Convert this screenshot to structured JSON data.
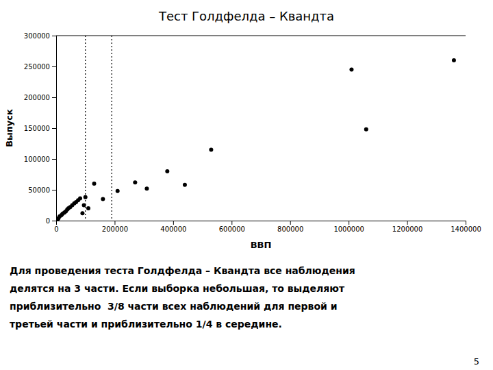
{
  "chart_data": {
    "type": "scatter",
    "title": "Тест Голдфелда – Квандта",
    "x_label": "ВВП",
    "y_label": "Выпуск",
    "x": [
      5000,
      8000,
      12000,
      18000,
      22000,
      28000,
      33000,
      38000,
      42000,
      48000,
      55000,
      62000,
      68000,
      75000,
      82000,
      90000,
      95000,
      100000,
      110000,
      130000,
      160000,
      210000,
      270000,
      310000,
      380000,
      440000,
      530000,
      1010000,
      1060000,
      1360000
    ],
    "values": [
      2000,
      4000,
      7000,
      9000,
      11000,
      13000,
      15000,
      18000,
      20000,
      22000,
      25000,
      28000,
      30000,
      33000,
      36000,
      12000,
      25000,
      38000,
      20000,
      60000,
      35000,
      48000,
      62000,
      52000,
      80000,
      58000,
      115000,
      245000,
      148000,
      260000
    ],
    "color": "#000000",
    "vlines": [
      100000,
      190000
    ],
    "xlim": [
      0,
      1400000
    ],
    "ylim": [
      0,
      300000
    ],
    "xticks": [
      0,
      200000,
      400000,
      600000,
      800000,
      1000000,
      1200000,
      1400000
    ],
    "yticks": [
      0,
      50000,
      100000,
      150000,
      200000,
      250000,
      300000
    ],
    "grid": false,
    "footnote": [
      "Для проведения теста Голдфелда – Квандта все наблюдения",
      "делятся на 3 части. Если выборка небольшая, то выделяют",
      "приблизительно  3/8 части всех наблюдений для первой и",
      "третьей части и приблизительно 1/4 в середине."
    ],
    "page_number": "5"
  }
}
